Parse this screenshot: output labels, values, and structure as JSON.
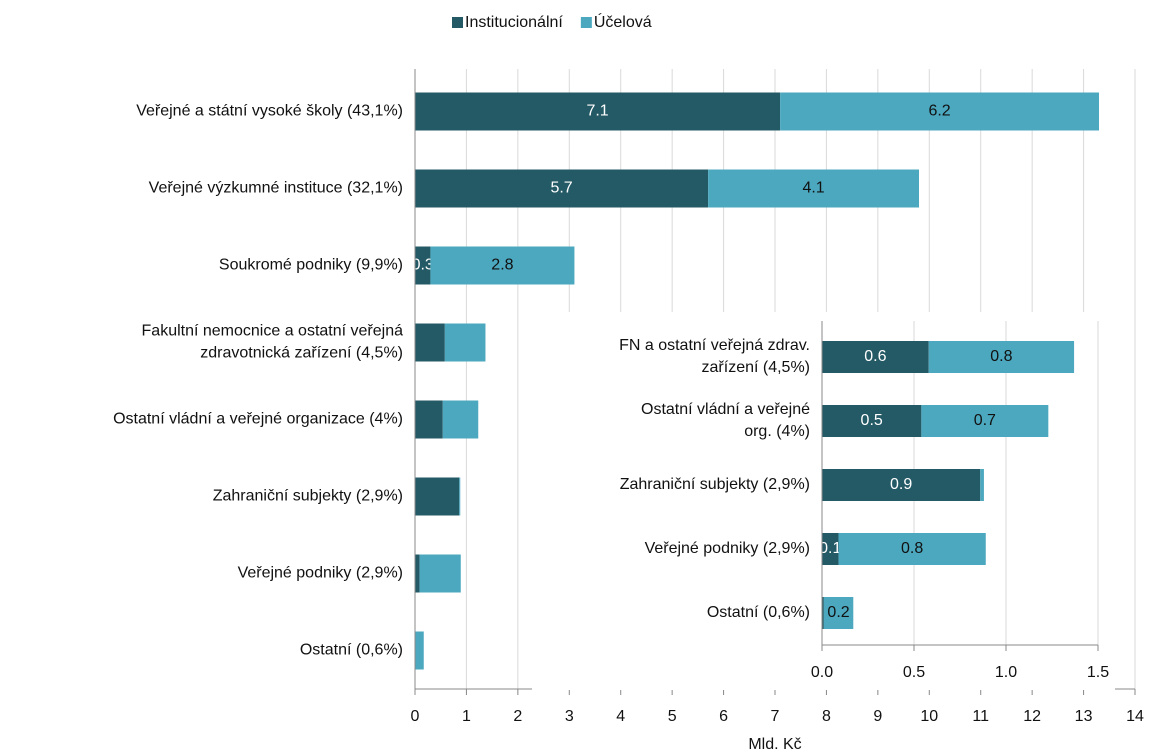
{
  "chart_data": [
    {
      "type": "stacked-barh",
      "x_label": "Mld. Kč",
      "legend": "top",
      "grid": true,
      "categories": [
        "Veřejné a státní vysoké školy (43,1%)",
        "Veřejné výzkumné instituce (32,1%)",
        "Soukromé podniky (9,9%)",
        [
          "Fakultní nemocnice a ostatní veřejná",
          "zdravotnická zařízení (4,5%)"
        ],
        "Ostatní vládní a veřejné organizace (4%)",
        "Zahraniční subjekty (2,9%)",
        "Veřejné podniky (2,9%)",
        "Ostatní (0,6%)"
      ],
      "series": [
        {
          "name": "Institucionální",
          "color": "#245a66",
          "values": [
            7.1,
            5.7,
            0.3,
            0.58,
            0.54,
            0.86,
            0.09,
            0.01
          ],
          "value_labels": [
            "7.1",
            "5.7",
            "0.3",
            null,
            null,
            null,
            null,
            null
          ]
        },
        {
          "name": "Účelová",
          "color": "#4ba8bf",
          "values": [
            6.2,
            4.1,
            2.8,
            0.79,
            0.69,
            0.02,
            0.8,
            0.16
          ],
          "value_labels": [
            "6.2",
            "4.1",
            "2.8",
            null,
            null,
            null,
            null,
            null
          ]
        }
      ],
      "xlim": [
        0,
        14
      ],
      "xticks": [
        0,
        1,
        2,
        3,
        4,
        5,
        6,
        7,
        8,
        9,
        10,
        11,
        12,
        13,
        14
      ]
    },
    {
      "type": "stacked-barh",
      "grid": true,
      "categories": [
        [
          "FN a ostatní veřejná zdrav.",
          "zařízení (4,5%)"
        ],
        [
          "Ostatní vládní a veřejné",
          "org. (4%)"
        ],
        "Zahraniční subjekty (2,9%)",
        "Veřejné podniky (2,9%)",
        "Ostatní (0,6%)"
      ],
      "series": [
        {
          "name": "Institucionální",
          "color": "#245a66",
          "values": [
            0.58,
            0.54,
            0.86,
            0.09,
            0.01
          ],
          "value_labels": [
            "0.6",
            "0.5",
            "0.9",
            "0.1",
            null
          ]
        },
        {
          "name": "Účelová",
          "color": "#4ba8bf",
          "values": [
            0.79,
            0.69,
            0.02,
            0.8,
            0.16
          ],
          "value_labels": [
            "0.8",
            "0.7",
            null,
            "0.8",
            "0.2"
          ]
        }
      ],
      "xlim": [
        0,
        1.5
      ],
      "xticks": [
        {
          "value": 0,
          "label": "0.0"
        },
        0.5,
        {
          "value": 1,
          "label": "1.0"
        },
        1.5
      ]
    }
  ]
}
